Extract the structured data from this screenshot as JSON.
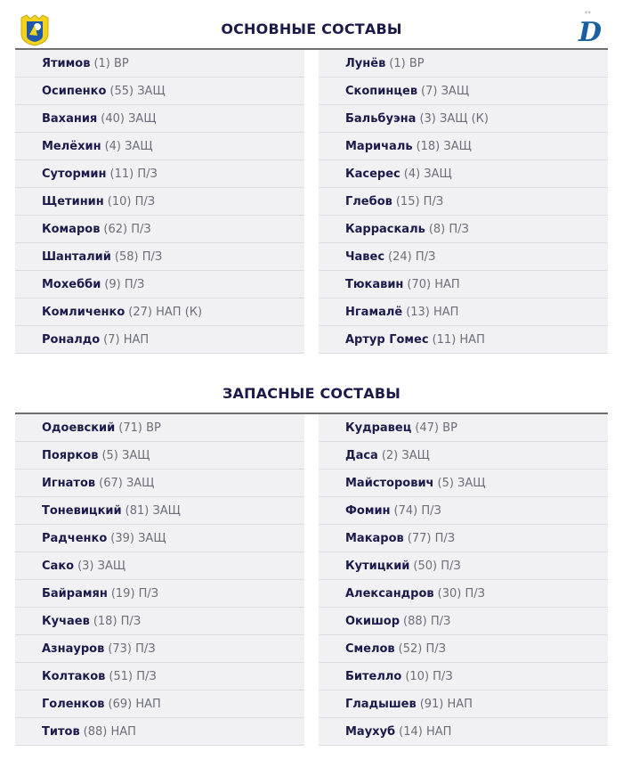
{
  "main": {
    "title": "ОСНОВНЫЕ СОСТАВЫ",
    "home": [
      {
        "name": "Ятимов",
        "info": "(1) ВР"
      },
      {
        "name": "Осипенко",
        "info": "(55) ЗАЩ"
      },
      {
        "name": "Вахания",
        "info": "(40) ЗАЩ"
      },
      {
        "name": "Мелёхин",
        "info": "(4) ЗАЩ"
      },
      {
        "name": "Сутормин",
        "info": "(11) П/З"
      },
      {
        "name": "Щетинин",
        "info": "(10) П/З"
      },
      {
        "name": "Комаров",
        "info": "(62) П/З"
      },
      {
        "name": "Шанталий",
        "info": "(58) П/З"
      },
      {
        "name": "Мохебби",
        "info": "(9) П/З"
      },
      {
        "name": "Комличенко",
        "info": "(27) НАП (К)"
      },
      {
        "name": "Роналдо",
        "info": "(7) НАП"
      }
    ],
    "away": [
      {
        "name": "Лунёв",
        "info": "(1) ВР"
      },
      {
        "name": "Скопинцев",
        "info": "(7) ЗАЩ"
      },
      {
        "name": "Бальбуэна",
        "info": "(3) ЗАЩ (К)"
      },
      {
        "name": "Маричаль",
        "info": "(18) ЗАЩ"
      },
      {
        "name": "Касерес",
        "info": "(4) ЗАЩ"
      },
      {
        "name": "Глебов",
        "info": "(15) П/З"
      },
      {
        "name": "Карраскаль",
        "info": "(8) П/З"
      },
      {
        "name": "Чавес",
        "info": "(24) П/З"
      },
      {
        "name": "Тюкавин",
        "info": "(70) НАП"
      },
      {
        "name": "Нгамалё",
        "info": "(13) НАП"
      },
      {
        "name": "Артур Гомес",
        "info": "(11) НАП"
      }
    ]
  },
  "subs": {
    "title": "ЗАПАСНЫЕ СОСТАВЫ",
    "home": [
      {
        "name": "Одоевский",
        "info": "(71) ВР"
      },
      {
        "name": "Поярков",
        "info": "(5) ЗАЩ"
      },
      {
        "name": "Игнатов",
        "info": "(67) ЗАЩ"
      },
      {
        "name": "Тоневицкий",
        "info": "(81) ЗАЩ"
      },
      {
        "name": "Радченко",
        "info": "(39) ЗАЩ"
      },
      {
        "name": "Сако",
        "info": "(3) ЗАЩ"
      },
      {
        "name": "Байрамян",
        "info": "(19) П/З"
      },
      {
        "name": "Кучаев",
        "info": "(18) П/З"
      },
      {
        "name": "Азнауров",
        "info": "(73) П/З"
      },
      {
        "name": "Колтаков",
        "info": "(51) П/З"
      },
      {
        "name": "Голенков",
        "info": "(69) НАП"
      },
      {
        "name": "Титов",
        "info": "(88) НАП"
      }
    ],
    "away": [
      {
        "name": "Кудравец",
        "info": "(47) ВР"
      },
      {
        "name": "Даса",
        "info": "(2) ЗАЩ"
      },
      {
        "name": "Майсторович",
        "info": "(5) ЗАЩ"
      },
      {
        "name": "Фомин",
        "info": "(74) П/З"
      },
      {
        "name": "Макаров",
        "info": "(77) П/З"
      },
      {
        "name": "Кутицкий",
        "info": "(50) П/З"
      },
      {
        "name": "Александров",
        "info": "(30) П/З"
      },
      {
        "name": "Окишор",
        "info": "(88) П/З"
      },
      {
        "name": "Смелов",
        "info": "(52) П/З"
      },
      {
        "name": "Бителло",
        "info": "(10) П/З"
      },
      {
        "name": "Гладышев",
        "info": "(91) НАП"
      },
      {
        "name": "Маухуб",
        "info": "(14) НАП"
      }
    ]
  },
  "logos": {
    "home": "rostov-crest-icon",
    "away": "dynamo-crest-icon"
  },
  "colors": {
    "title": "#1b1a4a",
    "row_bg": "#f1f1f4",
    "info": "#6d6d78",
    "rostov_yellow": "#f2d21b",
    "rostov_blue": "#1f58a8",
    "dynamo_blue": "#1a5fa0"
  }
}
